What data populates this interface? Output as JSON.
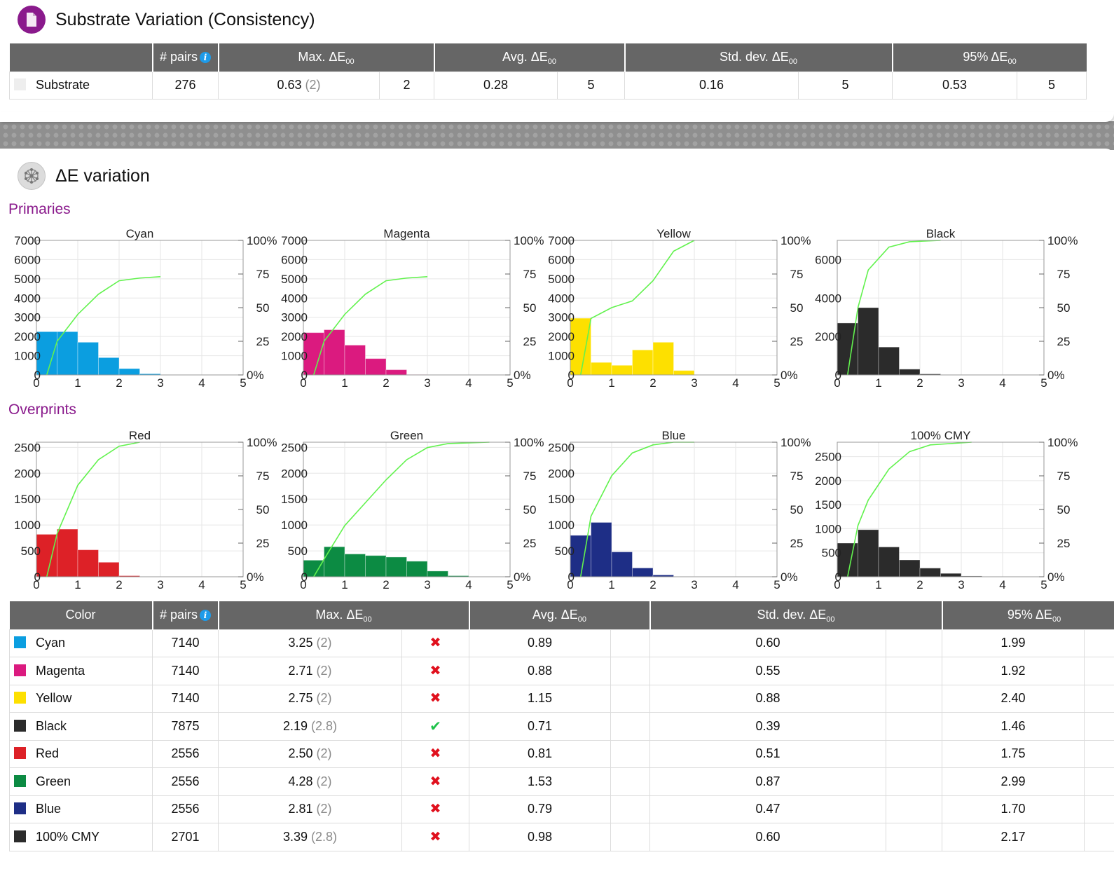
{
  "substrate_section": {
    "title": "Substrate Variation (Consistency)",
    "icon": "document-icon",
    "headers": {
      "pairs": "# pairs",
      "max": "Max. ΔE",
      "avg": "Avg. ΔE",
      "std": "Std. dev. ΔE",
      "p95": "95% ΔE",
      "sub": "00"
    },
    "row": {
      "name": "Substrate",
      "swatch": "#eeeeee",
      "pairs": "276",
      "max": "0.63",
      "max_tol": "(2)",
      "max_col2": "2",
      "avg": "0.28",
      "avg_col2": "5",
      "std": "0.16",
      "std_col2": "5",
      "p95": "0.53",
      "p95_col2": "5"
    }
  },
  "variation_section": {
    "title": "ΔE variation",
    "icon": "network-icon",
    "primaries_label": "Primaries",
    "overprints_label": "Overprints"
  },
  "chart_data": [
    {
      "type": "bar",
      "title": "Cyan",
      "color": "#0b9ee0",
      "x": [
        0,
        0.5,
        1,
        1.5,
        2,
        2.5
      ],
      "bin_width": 0.5,
      "values": [
        2250,
        2250,
        1700,
        900,
        330,
        60
      ],
      "cumulative_percent": [
        [
          0.25,
          0
        ],
        [
          0.5,
          25
        ],
        [
          1,
          45
        ],
        [
          1.5,
          60
        ],
        [
          2,
          70
        ],
        [
          2.5,
          72
        ],
        [
          3,
          73
        ]
      ],
      "xlim": [
        0,
        5
      ],
      "ylim": [
        0,
        7000
      ],
      "yticks": [
        0,
        1000,
        2000,
        3000,
        4000,
        5000,
        6000,
        7000
      ],
      "xticks": [
        0,
        1,
        2,
        3,
        4,
        5
      ],
      "y2ticks": [
        "0%",
        "25",
        "50",
        "75",
        "100%"
      ]
    },
    {
      "type": "bar",
      "title": "Magenta",
      "color": "#db1a7f",
      "x": [
        0,
        0.5,
        1,
        1.5,
        2,
        2.5
      ],
      "bin_width": 0.5,
      "values": [
        2200,
        2350,
        1550,
        850,
        270,
        20
      ],
      "cumulative_percent": [
        [
          0.25,
          0
        ],
        [
          0.5,
          25
        ],
        [
          1,
          45
        ],
        [
          1.5,
          60
        ],
        [
          2,
          70
        ],
        [
          2.5,
          72
        ],
        [
          3,
          73
        ]
      ],
      "xlim": [
        0,
        5
      ],
      "ylim": [
        0,
        7000
      ],
      "yticks": [
        0,
        1000,
        2000,
        3000,
        4000,
        5000,
        6000,
        7000
      ],
      "xticks": [
        0,
        1,
        2,
        3,
        4,
        5
      ],
      "y2ticks": [
        "0%",
        "25",
        "50",
        "75",
        "100%"
      ]
    },
    {
      "type": "bar",
      "title": "Yellow",
      "color": "#fde000",
      "x": [
        0,
        0.5,
        1,
        1.5,
        2,
        2.5
      ],
      "bin_width": 0.5,
      "values": [
        2950,
        650,
        500,
        1300,
        1700,
        230
      ],
      "cumulative_percent": [
        [
          0.25,
          0
        ],
        [
          0.5,
          42
        ],
        [
          1,
          50
        ],
        [
          1.5,
          55
        ],
        [
          2,
          70
        ],
        [
          2.5,
          92
        ],
        [
          3,
          100
        ]
      ],
      "xlim": [
        0,
        5
      ],
      "ylim": [
        0,
        7000
      ],
      "yticks": [
        0,
        1000,
        2000,
        3000,
        4000,
        5000,
        6000,
        7000
      ],
      "xticks": [
        0,
        1,
        2,
        3,
        4,
        5
      ],
      "y2ticks": [
        "0%",
        "25",
        "50",
        "75",
        "100%"
      ]
    },
    {
      "type": "bar",
      "title": "Black",
      "color": "#2b2b2b",
      "x": [
        0,
        0.5,
        1,
        1.5,
        2,
        2.5
      ],
      "bin_width": 0.5,
      "values": [
        2700,
        3500,
        1450,
        300,
        50,
        0
      ],
      "cumulative_percent": [
        [
          0.25,
          0
        ],
        [
          0.5,
          50
        ],
        [
          0.75,
          78
        ],
        [
          1.25,
          95
        ],
        [
          1.75,
          99
        ],
        [
          2.5,
          100
        ]
      ],
      "xlim": [
        0,
        5
      ],
      "ylim": [
        0,
        7000
      ],
      "yticks": [
        0,
        2000,
        4000,
        6000
      ],
      "xticks": [
        0,
        1,
        2,
        3,
        4,
        5
      ],
      "y2ticks": [
        "0%",
        "25",
        "50",
        "75",
        "100%"
      ]
    },
    {
      "type": "bar",
      "title": "Red",
      "color": "#dd2127",
      "x": [
        0,
        0.5,
        1,
        1.5,
        2
      ],
      "bin_width": 0.5,
      "values": [
        820,
        920,
        520,
        280,
        20
      ],
      "cumulative_percent": [
        [
          0.25,
          0
        ],
        [
          0.5,
          32
        ],
        [
          1,
          68
        ],
        [
          1.5,
          87
        ],
        [
          2,
          97
        ],
        [
          2.5,
          100
        ]
      ],
      "xlim": [
        0,
        5
      ],
      "ylim": [
        0,
        2600
      ],
      "yticks": [
        0,
        500,
        1000,
        1500,
        2000,
        2500
      ],
      "xticks": [
        0,
        1,
        2,
        3,
        4,
        5
      ],
      "y2ticks": [
        "0%",
        "25",
        "50",
        "75",
        "100%"
      ]
    },
    {
      "type": "bar",
      "title": "Green",
      "color": "#0c8b43",
      "x": [
        0,
        0.5,
        1,
        1.5,
        2,
        2.5,
        3,
        3.5
      ],
      "bin_width": 0.5,
      "values": [
        320,
        580,
        440,
        410,
        380,
        300,
        110,
        20
      ],
      "cumulative_percent": [
        [
          0.25,
          0
        ],
        [
          0.5,
          13
        ],
        [
          1,
          38
        ],
        [
          1.5,
          55
        ],
        [
          2,
          72
        ],
        [
          2.5,
          87
        ],
        [
          3,
          96
        ],
        [
          3.5,
          99
        ],
        [
          4.5,
          100
        ]
      ],
      "xlim": [
        0,
        5
      ],
      "ylim": [
        0,
        2600
      ],
      "yticks": [
        0,
        500,
        1000,
        1500,
        2000,
        2500
      ],
      "xticks": [
        0,
        1,
        2,
        3,
        4,
        5
      ],
      "y2ticks": [
        "0%",
        "25",
        "50",
        "75",
        "100%"
      ]
    },
    {
      "type": "bar",
      "title": "Blue",
      "color": "#1e2e86",
      "x": [
        0,
        0.5,
        1,
        1.5,
        2,
        2.5
      ],
      "bin_width": 0.5,
      "values": [
        800,
        1050,
        480,
        170,
        35,
        5
      ],
      "cumulative_percent": [
        [
          0.25,
          0
        ],
        [
          0.5,
          45
        ],
        [
          1,
          75
        ],
        [
          1.5,
          92
        ],
        [
          2,
          98
        ],
        [
          2.5,
          100
        ],
        [
          3,
          100
        ]
      ],
      "xlim": [
        0,
        5
      ],
      "ylim": [
        0,
        2600
      ],
      "yticks": [
        0,
        500,
        1000,
        1500,
        2000,
        2500
      ],
      "xticks": [
        0,
        1,
        2,
        3,
        4,
        5
      ],
      "y2ticks": [
        "0%",
        "25",
        "50",
        "75",
        "100%"
      ]
    },
    {
      "type": "bar",
      "title": "100% CMY",
      "color": "#2b2b2b",
      "x": [
        0,
        0.5,
        1,
        1.5,
        2,
        2.5,
        3
      ],
      "bin_width": 0.5,
      "values": [
        700,
        980,
        620,
        350,
        180,
        70,
        15
      ],
      "cumulative_percent": [
        [
          0.25,
          0
        ],
        [
          0.5,
          38
        ],
        [
          0.75,
          57
        ],
        [
          1.25,
          80
        ],
        [
          1.75,
          93
        ],
        [
          2.25,
          98
        ],
        [
          3.25,
          100
        ]
      ],
      "xlim": [
        0,
        5
      ],
      "ylim": [
        0,
        2800
      ],
      "yticks": [
        0,
        500,
        1000,
        1500,
        2000,
        2500
      ],
      "xticks": [
        0,
        1,
        2,
        3,
        4,
        5
      ],
      "y2ticks": [
        "0%",
        "25",
        "50",
        "75",
        "100%"
      ]
    }
  ],
  "color_table": {
    "headers": {
      "color": "Color",
      "pairs": "# pairs",
      "max": "Max. ΔE",
      "avg": "Avg. ΔE",
      "std": "Std. dev. ΔE",
      "p95": "95% ΔE",
      "sub": "00"
    },
    "rows": [
      {
        "name": "Cyan",
        "swatch": "#0b9ee0",
        "pairs": "7140",
        "max": "3.25",
        "max_tol": "(2)",
        "status": "fail",
        "status_icon": "✖",
        "avg": "0.89",
        "std": "0.60",
        "p95": "1.99"
      },
      {
        "name": "Magenta",
        "swatch": "#db1a7f",
        "pairs": "7140",
        "max": "2.71",
        "max_tol": "(2)",
        "status": "fail",
        "status_icon": "✖",
        "avg": "0.88",
        "std": "0.55",
        "p95": "1.92"
      },
      {
        "name": "Yellow",
        "swatch": "#fde000",
        "pairs": "7140",
        "max": "2.75",
        "max_tol": "(2)",
        "status": "fail",
        "status_icon": "✖",
        "avg": "1.15",
        "std": "0.88",
        "p95": "2.40"
      },
      {
        "name": "Black",
        "swatch": "#2b2b2b",
        "pairs": "7875",
        "max": "2.19",
        "max_tol": "(2.8)",
        "status": "pass",
        "status_icon": "✔",
        "avg": "0.71",
        "std": "0.39",
        "p95": "1.46"
      },
      {
        "name": "Red",
        "swatch": "#dd2127",
        "pairs": "2556",
        "max": "2.50",
        "max_tol": "(2)",
        "status": "fail",
        "status_icon": "✖",
        "avg": "0.81",
        "std": "0.51",
        "p95": "1.75"
      },
      {
        "name": "Green",
        "swatch": "#0c8b43",
        "pairs": "2556",
        "max": "4.28",
        "max_tol": "(2)",
        "status": "fail",
        "status_icon": "✖",
        "avg": "1.53",
        "std": "0.87",
        "p95": "2.99"
      },
      {
        "name": "Blue",
        "swatch": "#1e2e86",
        "pairs": "2556",
        "max": "2.81",
        "max_tol": "(2)",
        "status": "fail",
        "status_icon": "✖",
        "avg": "0.79",
        "std": "0.47",
        "p95": "1.70"
      },
      {
        "name": "100% CMY",
        "swatch": "#2b2b2b",
        "pairs": "2701",
        "max": "3.39",
        "max_tol": "(2.8)",
        "status": "fail",
        "status_icon": "✖",
        "avg": "0.98",
        "std": "0.60",
        "p95": "2.17"
      }
    ]
  }
}
